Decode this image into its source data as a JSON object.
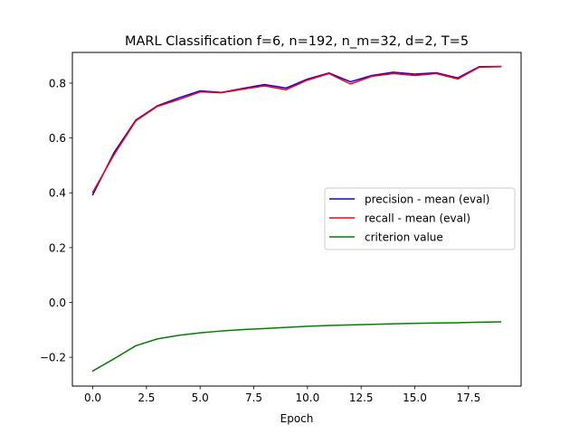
{
  "chart_data": {
    "type": "line",
    "title": "MARL Classification f=6, n=192, n_m=32, d=2, T=5",
    "xlabel": "Epoch",
    "ylabel": "",
    "xlim": [
      -0.95,
      19.95
    ],
    "ylim": [
      -0.305,
      0.912
    ],
    "xticks": [
      0.0,
      2.5,
      5.0,
      7.5,
      10.0,
      12.5,
      15.0,
      17.5
    ],
    "xtick_labels": [
      "0.0",
      "2.5",
      "5.0",
      "7.5",
      "10.0",
      "12.5",
      "15.0",
      "17.5"
    ],
    "yticks": [
      -0.2,
      0.0,
      0.2,
      0.4,
      0.6,
      0.8
    ],
    "ytick_labels": [
      "−0.2",
      "0.0",
      "0.2",
      "0.4",
      "0.6",
      "0.8"
    ],
    "grid": false,
    "legend_position": "center-right",
    "x": [
      0,
      1,
      2,
      3,
      4,
      5,
      6,
      7,
      8,
      9,
      10,
      11,
      12,
      13,
      14,
      15,
      16,
      17,
      18,
      19
    ],
    "series": [
      {
        "name": "precision - mean (eval)",
        "color": "#0000ff",
        "values": [
          0.393,
          0.548,
          0.665,
          0.717,
          0.746,
          0.772,
          0.766,
          0.781,
          0.795,
          0.782,
          0.815,
          0.837,
          0.805,
          0.828,
          0.84,
          0.833,
          0.838,
          0.819,
          0.86,
          0.861
        ]
      },
      {
        "name": "recall - mean (eval)",
        "color": "#ff0000",
        "values": [
          0.402,
          0.54,
          0.662,
          0.715,
          0.74,
          0.768,
          0.765,
          0.778,
          0.79,
          0.776,
          0.811,
          0.835,
          0.797,
          0.825,
          0.835,
          0.828,
          0.835,
          0.815,
          0.858,
          0.86
        ]
      },
      {
        "name": "criterion value",
        "color": "#008000",
        "values": [
          -0.25,
          -0.205,
          -0.158,
          -0.133,
          -0.12,
          -0.111,
          -0.104,
          -0.099,
          -0.095,
          -0.091,
          -0.087,
          -0.084,
          -0.082,
          -0.08,
          -0.078,
          -0.076,
          -0.075,
          -0.074,
          -0.072,
          -0.071
        ]
      }
    ]
  }
}
